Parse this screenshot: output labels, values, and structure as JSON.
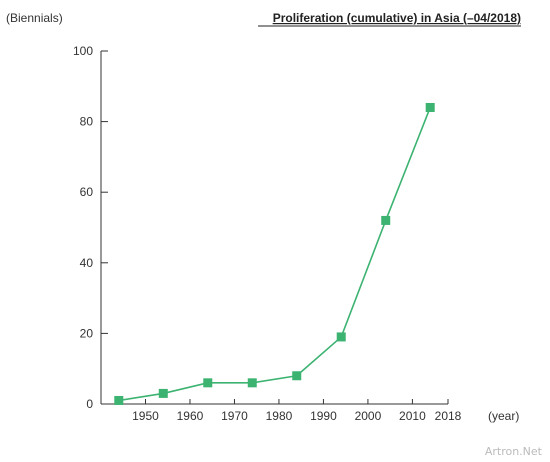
{
  "chart_data": {
    "type": "line",
    "title": "Proliferation (cumulative) in Asia (–04/2018)",
    "ylabel": "(Biennials)",
    "xlabel": "(year)",
    "x": [
      1944,
      1954,
      1964,
      1974,
      1984,
      1994,
      2004,
      2014
    ],
    "series": [
      {
        "values": [
          1,
          3,
          6,
          6,
          8,
          19,
          52,
          84
        ],
        "color": "#3cb371"
      }
    ],
    "xlim": [
      1940,
      2018
    ],
    "ylim": [
      0,
      100
    ],
    "xticks": [
      1950,
      1960,
      1970,
      1980,
      1990,
      2000,
      2010,
      2018
    ],
    "yticks": [
      0,
      20,
      40,
      60,
      80,
      100
    ],
    "grid": false,
    "legend": "none"
  },
  "watermark": "Artron.Net"
}
